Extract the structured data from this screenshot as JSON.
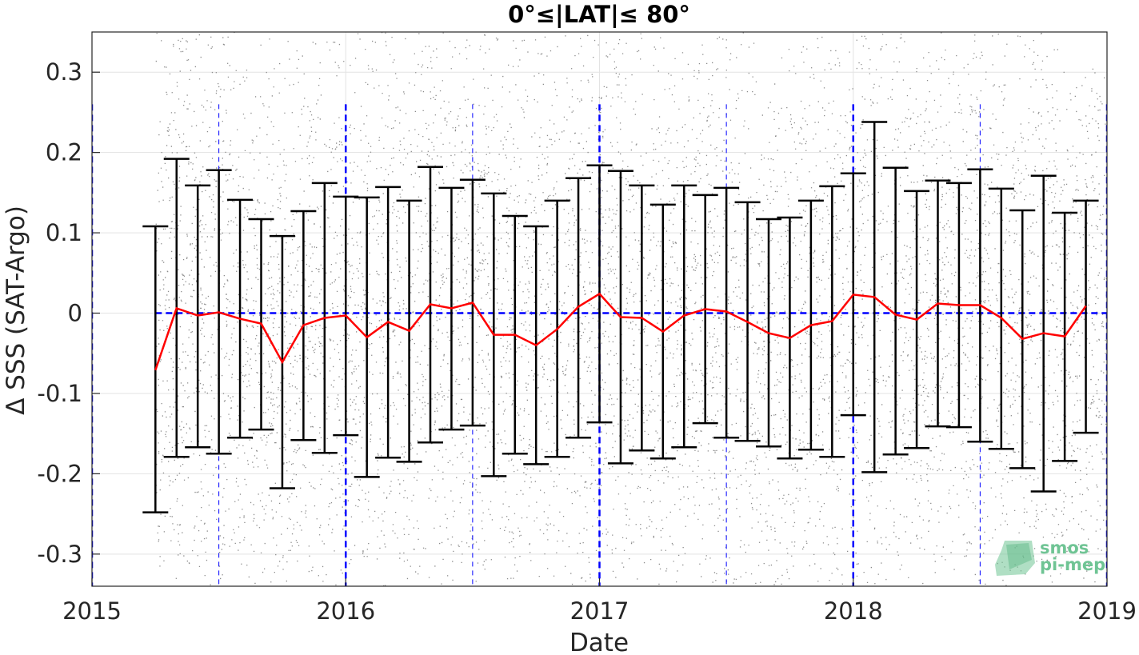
{
  "chart_data": {
    "type": "scatter",
    "title": "0°≤|LAT|≤ 80°",
    "xlabel": "Date",
    "ylabel": "Δ SSS (SAT-Argo)",
    "xlim": [
      "2015-01-01",
      "2019-01-01"
    ],
    "ylim": [
      -0.34,
      0.35
    ],
    "xticks": [
      "2015",
      "2016",
      "2017",
      "2018",
      "2019"
    ],
    "yticks": [
      0.3,
      0.2,
      0.1,
      0,
      -0.1,
      -0.2,
      -0.3
    ],
    "ytick_labels": [
      "0.3",
      "0.2",
      "0.1",
      "0",
      "-0.1",
      "-0.2",
      "-0.3"
    ],
    "grid": true,
    "scatter_background": {
      "color": "#8c8c8c",
      "description_from_plot": "point cloud of individual differences",
      "x_range": [
        "2015-04-01",
        "2019-01-01"
      ],
      "y_range": [
        -0.34,
        0.35
      ]
    },
    "reference_lines": {
      "zero_line": 0,
      "year_lines": [
        "2015-01-01",
        "2016-01-01",
        "2017-01-01",
        "2018-01-01",
        "2019-01-01"
      ],
      "half_year_lines": [
        "2015-07-01",
        "2016-07-01",
        "2017-07-01",
        "2018-07-01"
      ],
      "color": "#0000ff"
    },
    "series": [
      {
        "kind": "monthly_mean_with_std",
        "line_color": "#ff0000",
        "errorbar_color": "#000000",
        "x": [
          "2015-04",
          "2015-05",
          "2015-06",
          "2015-07",
          "2015-08",
          "2015-09",
          "2015-10",
          "2015-11",
          "2015-12",
          "2016-01",
          "2016-02",
          "2016-03",
          "2016-04",
          "2016-05",
          "2016-06",
          "2016-07",
          "2016-08",
          "2016-09",
          "2016-10",
          "2016-11",
          "2016-12",
          "2017-01",
          "2017-02",
          "2017-03",
          "2017-04",
          "2017-05",
          "2017-06",
          "2017-07",
          "2017-08",
          "2017-09",
          "2017-10",
          "2017-11",
          "2017-12",
          "2018-01",
          "2018-02",
          "2018-03",
          "2018-04",
          "2018-05",
          "2018-06",
          "2018-07",
          "2018-08",
          "2018-09",
          "2018-10",
          "2018-11",
          "2018-12"
        ],
        "mean": [
          -0.071,
          0.006,
          -0.003,
          0.001,
          -0.007,
          -0.013,
          -0.061,
          -0.015,
          -0.006,
          -0.003,
          -0.03,
          -0.011,
          -0.022,
          0.011,
          0.006,
          0.013,
          -0.027,
          -0.027,
          -0.04,
          -0.02,
          0.008,
          0.024,
          -0.005,
          -0.006,
          -0.023,
          -0.003,
          0.005,
          0.002,
          -0.011,
          -0.025,
          -0.031,
          -0.015,
          -0.01,
          0.023,
          0.02,
          -0.002,
          -0.008,
          0.012,
          0.01,
          0.01,
          -0.006,
          -0.032,
          -0.025,
          -0.029,
          0.009
        ],
        "upper": [
          0.108,
          0.192,
          0.159,
          0.178,
          0.141,
          0.117,
          0.096,
          0.127,
          0.162,
          0.145,
          0.144,
          0.157,
          0.14,
          0.182,
          0.156,
          0.166,
          0.149,
          0.121,
          0.108,
          0.14,
          0.168,
          0.184,
          0.177,
          0.159,
          0.135,
          0.159,
          0.147,
          0.156,
          0.138,
          0.117,
          0.119,
          0.14,
          0.158,
          0.174,
          0.238,
          0.181,
          0.152,
          0.165,
          0.162,
          0.179,
          0.155,
          0.128,
          0.171,
          0.125,
          0.14
        ],
        "lower": [
          -0.248,
          -0.179,
          -0.167,
          -0.175,
          -0.155,
          -0.145,
          -0.218,
          -0.158,
          -0.174,
          -0.152,
          -0.204,
          -0.18,
          -0.185,
          -0.161,
          -0.145,
          -0.14,
          -0.203,
          -0.175,
          -0.188,
          -0.179,
          -0.155,
          -0.136,
          -0.187,
          -0.171,
          -0.181,
          -0.167,
          -0.137,
          -0.155,
          -0.159,
          -0.166,
          -0.181,
          -0.17,
          -0.179,
          -0.127,
          -0.198,
          -0.176,
          -0.168,
          -0.141,
          -0.142,
          -0.16,
          -0.169,
          -0.193,
          -0.222,
          -0.184,
          -0.149
        ]
      }
    ]
  },
  "logo": {
    "line1": "smos",
    "line2": "pi-mep",
    "color": "#6fc494"
  }
}
